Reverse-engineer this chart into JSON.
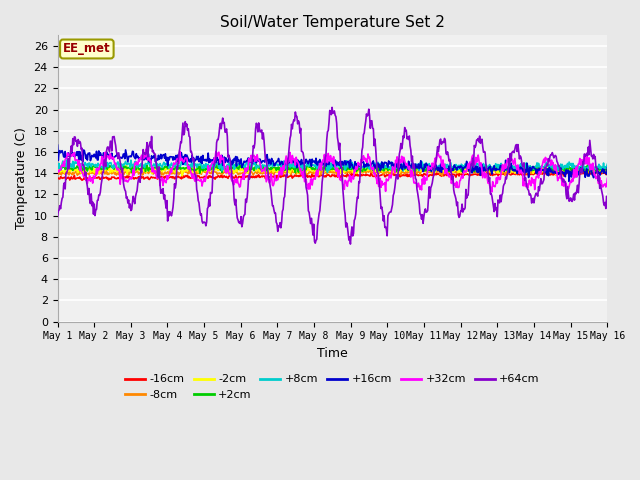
{
  "title": "Soil/Water Temperature Set 2",
  "xlabel": "Time",
  "ylabel": "Temperature (C)",
  "ylim": [
    0,
    27
  ],
  "yticks": [
    0,
    2,
    4,
    6,
    8,
    10,
    12,
    14,
    16,
    18,
    20,
    22,
    24,
    26
  ],
  "bg_color": "#e8e8e8",
  "plot_bg_color": "#f0f0f0",
  "annotation_text": "EE_met",
  "annotation_bg": "#ffffcc",
  "annotation_border": "#999900",
  "annotation_text_color": "#990000",
  "series_order": [
    "-16cm",
    "-8cm",
    "-2cm",
    "+2cm",
    "+8cm",
    "+16cm",
    "+32cm",
    "+64cm"
  ],
  "series": {
    "-16cm": {
      "color": "#ff0000",
      "lw": 1.2
    },
    "-8cm": {
      "color": "#ff8800",
      "lw": 1.2
    },
    "-2cm": {
      "color": "#ffff00",
      "lw": 1.2
    },
    "+2cm": {
      "color": "#00cc00",
      "lw": 1.2
    },
    "+8cm": {
      "color": "#00cccc",
      "lw": 1.2
    },
    "+16cm": {
      "color": "#0000cc",
      "lw": 1.2
    },
    "+32cm": {
      "color": "#ff00ff",
      "lw": 1.2
    },
    "+64cm": {
      "color": "#8800cc",
      "lw": 1.2
    }
  },
  "n_points": 720,
  "x_start": 0,
  "x_end": 15,
  "xtick_positions": [
    0,
    1,
    2,
    3,
    4,
    5,
    6,
    7,
    8,
    9,
    10,
    11,
    12,
    13,
    14,
    15
  ],
  "xtick_labels": [
    "May 1",
    "May 2",
    "May 3",
    "May 4",
    "May 5",
    "May 6",
    "May 7",
    "May 8",
    "May 9",
    "May 10",
    "May 11",
    "May 12",
    "May 13",
    "May 14",
    "May 15",
    "May 16"
  ]
}
